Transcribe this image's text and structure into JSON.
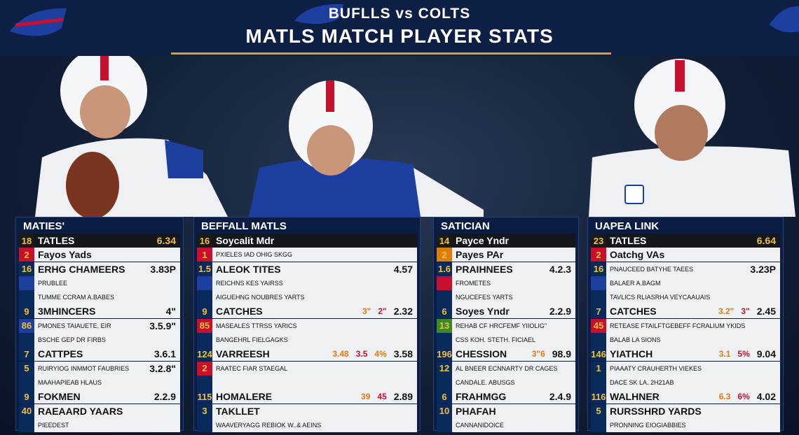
{
  "header": {
    "subtitle": "BUFLLS vs COLTS",
    "title": "MATLS MATCH PLAYER STATS"
  },
  "panels": [
    {
      "title": "MATIES'",
      "rows": [
        {
          "num": "18",
          "tone": "#1a1a1a",
          "label": "TATLES",
          "extras": [],
          "value": "6.34"
        },
        {
          "num": "2",
          "tone": "#c8102e",
          "label": "Fayos Yads",
          "extras": [],
          "value": ""
        },
        {
          "num": "16",
          "tone": "#0b2a5c",
          "label": "ERHG CHAMEERS",
          "extras": [],
          "value": "3.83P"
        },
        {
          "num": "",
          "tone": "#1d3fa0",
          "label": "PRUBLEE",
          "extras": [],
          "value": ""
        },
        {
          "num": "",
          "tone": "#0b2a5c",
          "label": "TUMME CCRAM A.BABES",
          "extras": [],
          "value": ""
        },
        {
          "num": "9",
          "tone": "#0b2a5c",
          "label": "3MHINCERS",
          "extras": [],
          "value": "4\""
        },
        {
          "num": "86",
          "tone": "#1d3fa0",
          "label": "PMONES TAIAUETE. EIR",
          "extras": [],
          "value": "3.5.9\""
        },
        {
          "num": "",
          "tone": "#0b2a5c",
          "label": "BSCHE GEP DR FIRBS",
          "extras": [],
          "value": ""
        },
        {
          "num": "7",
          "tone": "#0b2a5c",
          "label": "CATTPES",
          "extras": [],
          "value": "3.6.1"
        },
        {
          "num": "5",
          "tone": "#0b2a5c",
          "label": "RUIRYIOG INMMOT FAUBRIES",
          "extras": [],
          "value": "3.2.8\""
        },
        {
          "num": "",
          "tone": "#0b2a5c",
          "label": "MAAHAPIEAB HLAUS",
          "extras": [],
          "value": ""
        },
        {
          "num": "9",
          "tone": "#0b2a5c",
          "label": "FOKMEN",
          "extras": [],
          "value": "2.2.9"
        },
        {
          "num": "40",
          "tone": "#0b2a5c",
          "label": "RAEAARD YAARS",
          "extras": [],
          "value": ""
        },
        {
          "num": "",
          "tone": "#0b2a5c",
          "label": "PIEEDEST",
          "extras": [],
          "value": ""
        }
      ]
    },
    {
      "title": "BEFFALL MATLS",
      "rows": [
        {
          "num": "16",
          "tone": "#1a1a1a",
          "label": "Soycalit Mdr",
          "extras": [],
          "value": ""
        },
        {
          "num": "1",
          "tone": "#c8102e",
          "label": "PXIELES IAD OHIG SKGG",
          "extras": [],
          "value": ""
        },
        {
          "num": "1.5",
          "tone": "#0b2a5c",
          "label": "ALEOK TITES",
          "extras": [],
          "value": "4.57"
        },
        {
          "num": "",
          "tone": "#1d3fa0",
          "label": "REICHNS KES YAIRSS",
          "extras": [],
          "value": ""
        },
        {
          "num": "",
          "tone": "#0b2a5c",
          "label": "AIGUEHNG NOUBRES YARTS",
          "extras": [],
          "value": ""
        },
        {
          "num": "9",
          "tone": "#0b2a5c",
          "label": "CATCHES",
          "extras": [
            "3\"",
            "2\""
          ],
          "value": "2.32"
        },
        {
          "num": "85",
          "tone": "#c8102e",
          "label": "MASEALES TTRSS YARICS",
          "extras": [],
          "value": ""
        },
        {
          "num": "",
          "tone": "#0b2a5c",
          "label": "BANGEHRL FIELGAGKS",
          "extras": [],
          "value": ""
        },
        {
          "num": "124",
          "tone": "#0b2a5c",
          "label": "VARREESH",
          "extras": [
            "3.48",
            "3.5",
            "4%"
          ],
          "value": "3.58"
        },
        {
          "num": "2",
          "tone": "#c8102e",
          "label": "RAATEC FIAR STAEGAL",
          "extras": [],
          "value": ""
        },
        {
          "num": "",
          "tone": "#0b2a5c",
          "label": "",
          "extras": [],
          "value": ""
        },
        {
          "num": "115",
          "tone": "#0b2a5c",
          "label": "HOMALERE",
          "extras": [
            "39",
            "45"
          ],
          "value": "2.89"
        },
        {
          "num": "3",
          "tone": "#0b2a5c",
          "label": "TAKLLET",
          "extras": [],
          "value": ""
        },
        {
          "num": "",
          "tone": "#0b2a5c",
          "label": "WAAVERYAGG REBIOK W..& AEINS",
          "extras": [],
          "value": ""
        }
      ]
    },
    {
      "title": "SATICIAN",
      "rows": [
        {
          "num": "14",
          "tone": "#1a1a1a",
          "label": "Payce Yndr",
          "extras": [],
          "value": ""
        },
        {
          "num": "2",
          "tone": "#e07b10",
          "label": "Payes PAr",
          "extras": [],
          "value": ""
        },
        {
          "num": "1.6",
          "tone": "#0b2a5c",
          "label": "PRAIHNEES",
          "extras": [],
          "value": "4.2.3"
        },
        {
          "num": "",
          "tone": "#c8102e",
          "label": "FROMETES",
          "extras": [],
          "value": ""
        },
        {
          "num": "",
          "tone": "#0b2a5c",
          "label": "NGUCEFES YARTS",
          "extras": [],
          "value": ""
        },
        {
          "num": "6",
          "tone": "#0b2a5c",
          "label": "Soyes Yndr",
          "extras": [],
          "value": "2.2.9"
        },
        {
          "num": "13",
          "tone": "#3a8a2a",
          "label": "REHAB CF HRCFEMF YIIOLIG\"",
          "extras": [],
          "value": ""
        },
        {
          "num": "",
          "tone": "#0b2a5c",
          "label": "CSS KOH. STETH. FICIAEL",
          "extras": [],
          "value": ""
        },
        {
          "num": "196",
          "tone": "#0b2a5c",
          "label": "CHESSION",
          "extras": [
            "3\"6"
          ],
          "value": "98.9"
        },
        {
          "num": "12",
          "tone": "#0b2a5c",
          "label": "AL BNEER ECNNARTY DR CAGES",
          "extras": [],
          "value": ""
        },
        {
          "num": "",
          "tone": "#0b2a5c",
          "label": "CANDALE. ABUSGS",
          "extras": [],
          "value": ""
        },
        {
          "num": "6",
          "tone": "#0b2a5c",
          "label": "FRAHMGG",
          "extras": [],
          "value": "2.4.9"
        },
        {
          "num": "10",
          "tone": "#0b2a5c",
          "label": "PHAFAH",
          "extras": [],
          "value": ""
        },
        {
          "num": "",
          "tone": "#0b2a5c",
          "label": "CANNANIDOICE",
          "extras": [],
          "value": ""
        }
      ]
    },
    {
      "title": "UAPEA LINK",
      "rows": [
        {
          "num": "23",
          "tone": "#1a1a1a",
          "label": "TATLES",
          "extras": [],
          "value": "6.64"
        },
        {
          "num": "2",
          "tone": "#c8102e",
          "label": "Oatchg VAs",
          "extras": [],
          "value": ""
        },
        {
          "num": "16",
          "tone": "#0b2a5c",
          "label": "PNAUCEED BATYHE TAEES",
          "extras": [],
          "value": "3.23P"
        },
        {
          "num": "",
          "tone": "#1d3fa0",
          "label": "BALAER A.BAGM",
          "extras": [],
          "value": ""
        },
        {
          "num": "",
          "tone": "#0b2a5c",
          "label": "TAVLICS RLIASRHA VEYCAAUAIS",
          "extras": [],
          "value": ""
        },
        {
          "num": "7",
          "tone": "#0b2a5c",
          "label": "CATCHES",
          "extras": [
            "3.2\"",
            "3\""
          ],
          "value": "2.45"
        },
        {
          "num": "45",
          "tone": "#c8102e",
          "label": "RETEASE FTAILFTGEBEFF FCRALIUM YKIDS",
          "extras": [],
          "value": ""
        },
        {
          "num": "",
          "tone": "#0b2a5c",
          "label": "BALAB LA SIONS",
          "extras": [],
          "value": ""
        },
        {
          "num": "146",
          "tone": "#0b2a5c",
          "label": "YIATHCH",
          "extras": [
            "3.1",
            "5%"
          ],
          "value": "9.04"
        },
        {
          "num": "1",
          "tone": "#0b2a5c",
          "label": "PIAAATY CRAUHERTH VIEKES",
          "extras": [],
          "value": ""
        },
        {
          "num": "",
          "tone": "#0b2a5c",
          "label": "DACE SK LA. 2H21AB",
          "extras": [],
          "value": ""
        },
        {
          "num": "116",
          "tone": "#0b2a5c",
          "label": "WALHNER",
          "extras": [
            "6.3",
            "6%"
          ],
          "value": "4.02"
        },
        {
          "num": "5",
          "tone": "#0b2a5c",
          "label": "RURSSHRD YARDS",
          "extras": [],
          "value": ""
        },
        {
          "num": "",
          "tone": "#0b2a5c",
          "label": "PRONNING EIOGIABBIES",
          "extras": [],
          "value": ""
        }
      ]
    }
  ]
}
